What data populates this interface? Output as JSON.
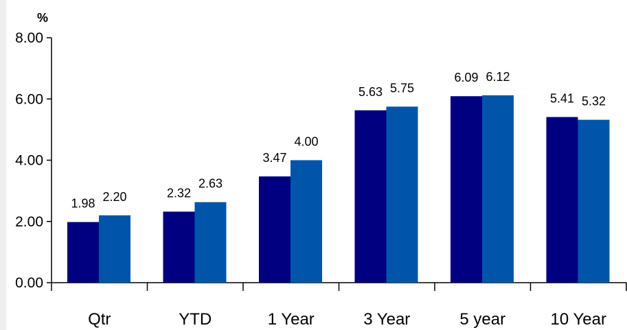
{
  "chart_data": {
    "type": "bar",
    "ylabel": "%",
    "categories": [
      "Qtr",
      "YTD",
      "1 Year",
      "3 Year",
      "5 year",
      "10 Year"
    ],
    "series": [
      {
        "values": [
          1.98,
          2.32,
          3.47,
          5.63,
          6.09,
          5.41
        ],
        "color": "#000080"
      },
      {
        "values": [
          2.2,
          2.63,
          4.0,
          5.75,
          6.12,
          5.32
        ],
        "color": "#0055AA"
      }
    ],
    "value_labels": [
      [
        "1.98",
        "2.32",
        "3.47",
        "5.63",
        "6.09",
        "5.41"
      ],
      [
        "2.20",
        "2.63",
        "4.00",
        "5.75",
        "6.12",
        "5.32"
      ]
    ],
    "ylim": [
      0,
      8
    ],
    "yticks": [
      "0.00",
      "2.00",
      "4.00",
      "6.00",
      "8.00"
    ],
    "grid": false,
    "legend": "none"
  }
}
